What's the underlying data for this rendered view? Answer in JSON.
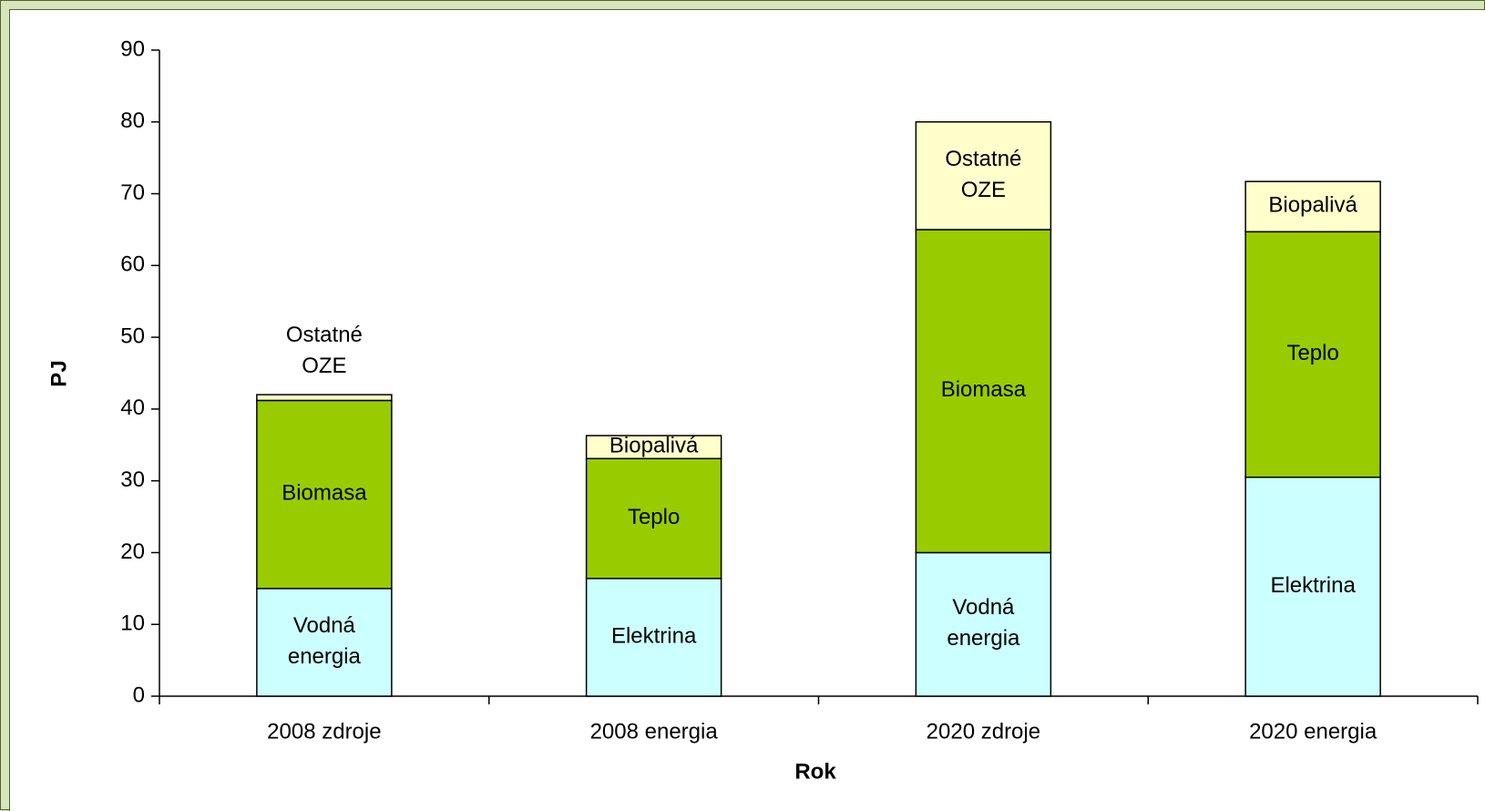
{
  "chart_data": {
    "type": "stacked_bar",
    "categories": [
      "2008 zdroje",
      "2008 energia",
      "2020 zdroje",
      "2020 energia"
    ],
    "series": [
      {
        "color": "#ccffff",
        "values": [
          15,
          16.4,
          20,
          30.5
        ],
        "labels": [
          [
            "Vodná",
            "energia"
          ],
          [
            "Elektrina"
          ],
          [
            "Vodná",
            "energia"
          ],
          [
            "Elektrina"
          ]
        ]
      },
      {
        "color": "#99cc00",
        "values": [
          26.2,
          16.7,
          45,
          34.2
        ],
        "labels": [
          [
            "Biomasa"
          ],
          [
            "Teplo"
          ],
          [
            "Biomasa"
          ],
          [
            "Teplo"
          ]
        ]
      },
      {
        "color": "#ffffcc",
        "values": [
          0.8,
          3.2,
          15,
          7.0
        ],
        "labels": [
          [
            "Ostatné",
            "OZE"
          ],
          [
            "Biopalivá"
          ],
          [
            "Ostatné",
            "OZE"
          ],
          [
            "Biopalivá"
          ]
        ]
      }
    ],
    "ylabel": "PJ",
    "xlabel": "Rok",
    "ylim": [
      0,
      90
    ],
    "yticks": [
      0,
      10,
      20,
      30,
      40,
      50,
      60,
      70,
      80,
      90
    ]
  }
}
